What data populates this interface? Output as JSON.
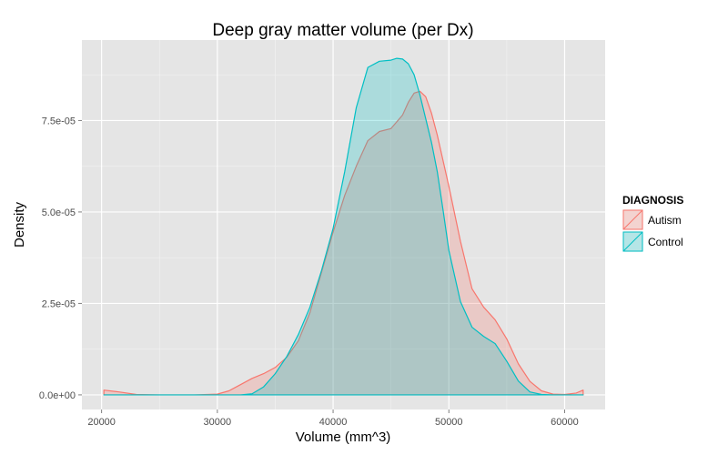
{
  "chart_data": {
    "type": "area",
    "title": "Deep gray matter volume (per Dx)",
    "xlabel": "Volume (mm^3)",
    "ylabel": "Density",
    "xlim": [
      18300,
      63500
    ],
    "ylim": [
      -4e-06,
      9.7e-05
    ],
    "x_ticks": [
      20000,
      30000,
      40000,
      50000,
      60000
    ],
    "x_tick_labels": [
      "20000",
      "30000",
      "40000",
      "50000",
      "60000"
    ],
    "y_ticks": [
      0,
      2.5e-05,
      5e-05,
      7.5e-05
    ],
    "y_tick_labels": [
      "0.0e+00",
      "2.5e-05",
      "5.0e-05",
      "7.5e-05"
    ],
    "grid": true,
    "legend": {
      "title": "DIAGNOSIS",
      "position": "right"
    },
    "series": [
      {
        "name": "Autism",
        "line_color": "#F8766D",
        "fill_color": "#F8766D",
        "x": [
          20200,
          21500,
          23000,
          25000,
          28000,
          30000,
          31000,
          32000,
          33000,
          34000,
          35000,
          36000,
          37000,
          38000,
          39000,
          40000,
          41000,
          42000,
          43000,
          44000,
          45000,
          46000,
          46500,
          47000,
          47500,
          48000,
          48500,
          49000,
          50000,
          51000,
          52000,
          53000,
          54000,
          55000,
          56000,
          57000,
          58000,
          59000,
          60000,
          61000,
          61600
        ],
        "y": [
          1.3e-06,
          8e-07,
          1e-07,
          0,
          0,
          2e-07,
          1.1e-06,
          2.8e-06,
          4.5e-06,
          5.8e-06,
          7.5e-06,
          1.03e-05,
          1.48e-05,
          2.25e-05,
          3.35e-05,
          4.45e-05,
          5.45e-05,
          6.25e-05,
          6.95e-05,
          7.2e-05,
          7.28e-05,
          7.65e-05,
          8e-05,
          8.25e-05,
          8.3e-05,
          8.15e-05,
          7.7e-05,
          7.1e-05,
          5.7e-05,
          4.2e-05,
          2.9e-05,
          2.4e-05,
          2.05e-05,
          1.53e-05,
          8.5e-06,
          3.7e-06,
          1.1e-06,
          2e-07,
          1e-07,
          5e-07,
          1.3e-06
        ]
      },
      {
        "name": "Control",
        "line_color": "#00BFC4",
        "fill_color": "#00BFC4",
        "x": [
          20200,
          25000,
          30000,
          32000,
          33000,
          34000,
          35000,
          36000,
          37000,
          38000,
          39000,
          40000,
          41000,
          42000,
          43000,
          44000,
          45000,
          45500,
          46000,
          46500,
          47000,
          47500,
          48000,
          48500,
          49000,
          49500,
          50000,
          51000,
          52000,
          53000,
          54000,
          55000,
          56000,
          57000,
          58000,
          59000,
          61600
        ],
        "y": [
          0,
          0,
          0,
          0,
          3e-07,
          2.2e-06,
          5.8e-06,
          1.05e-05,
          1.65e-05,
          2.4e-05,
          3.4e-05,
          4.55e-05,
          6.1e-05,
          7.85e-05,
          8.95e-05,
          9.12e-05,
          9.15e-05,
          9.2e-05,
          9.18e-05,
          9.05e-05,
          8.75e-05,
          8.2e-05,
          7.55e-05,
          6.9e-05,
          6.1e-05,
          5.05e-05,
          3.95e-05,
          2.55e-05,
          1.85e-05,
          1.6e-05,
          1.4e-05,
          9.2e-06,
          3.8e-06,
          8e-07,
          1e-07,
          0,
          0
        ]
      }
    ]
  }
}
